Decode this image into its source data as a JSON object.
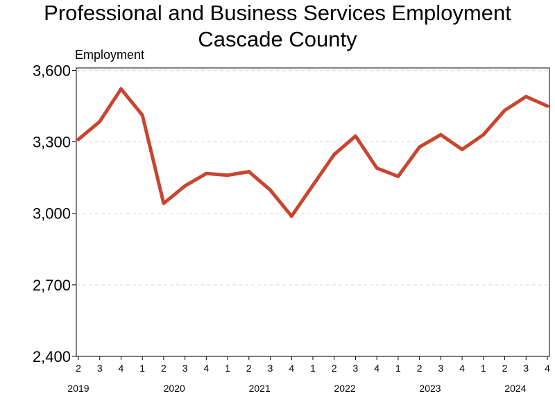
{
  "chart_data": {
    "type": "line",
    "title": "Professional and Business Services Employment",
    "subtitle": "Cascade County",
    "ylabel": "Employment",
    "xlabel": "",
    "ylim": [
      2400,
      3610
    ],
    "yticks": [
      2400,
      2700,
      3000,
      3300,
      3600
    ],
    "ytick_labels": [
      "2,400",
      "2,700",
      "3,000",
      "3,300",
      "3,600"
    ],
    "grid": true,
    "legend": "none",
    "x": [
      "2019 Q2",
      "2019 Q3",
      "2019 Q4",
      "2020 Q1",
      "2020 Q2",
      "2020 Q3",
      "2020 Q4",
      "2021 Q1",
      "2021 Q2",
      "2021 Q3",
      "2021 Q4",
      "2022 Q1",
      "2022 Q2",
      "2022 Q3",
      "2022 Q4",
      "2023 Q1",
      "2023 Q2",
      "2023 Q3",
      "2023 Q4",
      "2024 Q1",
      "2024 Q2",
      "2024 Q3",
      "2024 Q4"
    ],
    "quarter_labels": [
      "2",
      "3",
      "4",
      "1",
      "2",
      "3",
      "4",
      "1",
      "2",
      "3",
      "4",
      "1",
      "2",
      "3",
      "4",
      "1",
      "2",
      "3",
      "4",
      "1",
      "2",
      "3",
      "4"
    ],
    "years": [
      {
        "label": "2019",
        "first_index": 0,
        "last_index": 2
      },
      {
        "label": "2020",
        "first_index": 3,
        "last_index": 6
      },
      {
        "label": "2021",
        "first_index": 7,
        "last_index": 10
      },
      {
        "label": "2022",
        "first_index": 11,
        "last_index": 14
      },
      {
        "label": "2023",
        "first_index": 15,
        "last_index": 18
      },
      {
        "label": "2024",
        "first_index": 19,
        "last_index": 22
      }
    ],
    "series": [
      {
        "color": "#c8452f",
        "values": [
          3310,
          3385,
          3522,
          3412,
          3042,
          3115,
          3167,
          3160,
          3175,
          3098,
          2988,
          3118,
          3247,
          3324,
          3190,
          3155,
          3278,
          3330,
          3268,
          3330,
          3432,
          3490,
          3450
        ]
      }
    ]
  }
}
